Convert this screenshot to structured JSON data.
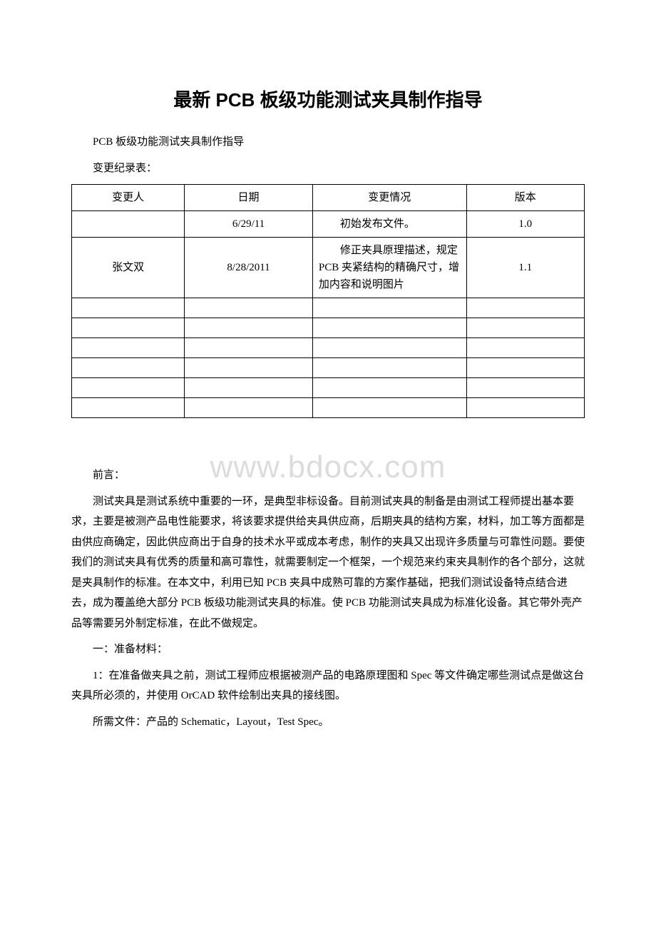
{
  "title": "最新 PCB 板级功能测试夹具制作指导",
  "intro_line": "PCB 板级功能测试夹具制作指导",
  "table_label": "变更纪录表：",
  "watermark": "www.bdocx.com",
  "table": {
    "headers": [
      "变更人",
      "日期",
      "变更情况",
      "版本"
    ],
    "rows": [
      {
        "person": "",
        "date": "6/29/11",
        "change": "初始发布文件。",
        "version": "1.0"
      },
      {
        "person": "张文双",
        "date": "8/28/2011",
        "change": "修正夹具原理描述，规定 PCB 夹紧结构的精确尺寸，增加内容和说明图片",
        "version": "1.1"
      }
    ],
    "empty_row_count": 6
  },
  "preface_label": "前言：",
  "preface_body": "测试夹具是测试系统中重要的一环，是典型非标设备。目前测试夹具的制备是由测试工程师提出基本要求，主要是被测产品电性能要求，将该要求提供给夹具供应商，后期夹具的结构方案，材料，加工等方面都是由供应商确定，因此供应商出于自身的技术水平或成本考虑，制作的夹具又出现许多质量与可靠性问题。要使我们的测试夹具有优秀的质量和高可靠性，就需要制定一个框架，一个规范来约束夹具制作的各个部分，这就是夹具制作的标准。在本文中，利用已知 PCB 夹具中成熟可靠的方案作基础，把我们测试设备特点结合进去，成为覆盖绝大部分 PCB 板级功能测试夹具的标准。使 PCB 功能测试夹具成为标准化设备。其它带外壳产品等需要另外制定标准，在此不做规定。",
  "section1_label": "一：准备材料：",
  "section1_item1": "1：在准备做夹具之前，测试工程师应根据被测产品的电路原理图和 Spec 等文件确定哪些测试点是做这台夹具所必须的，并使用 OrCAD 软件绘制出夹具的接线图。",
  "section1_item2": "所需文件：产品的 Schematic，Layout，Test Spec。"
}
